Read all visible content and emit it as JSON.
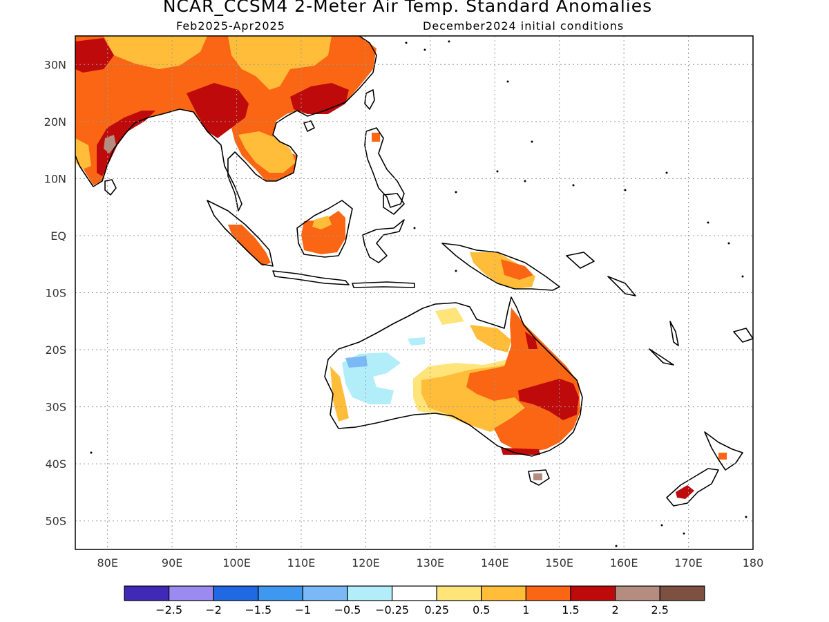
{
  "header": {
    "title": "NCAR_CCSM4 2-Meter Air Temp. Standard Anomalies",
    "period": "Feb2025-Apr2025",
    "init": "December2024 initial conditions"
  },
  "map": {
    "lon_range": [
      75,
      180
    ],
    "lat_range": [
      -55,
      35
    ],
    "lat_labels": [
      "30N",
      "20N",
      "10N",
      "EQ",
      "10S",
      "20S",
      "30S",
      "40S",
      "50S"
    ],
    "lon_labels": [
      "80E",
      "90E",
      "100E",
      "110E",
      "120E",
      "130E",
      "140E",
      "150E",
      "160E",
      "170E",
      "180"
    ],
    "grid_style": "dotted",
    "land_outline_color": "#000000",
    "colorbar": {
      "colors": [
        "#3f29b6",
        "#9b8bf0",
        "#2169e3",
        "#3f98f0",
        "#7ab9f5",
        "#b2eefa",
        "#ffffff",
        "#ffe47a",
        "#ffbd3a",
        "#fa6614",
        "#be0a0a",
        "#b58d80",
        "#7e5041"
      ],
      "labels": [
        "-2.5",
        "-2",
        "-1.5",
        "-1",
        "-0.5",
        "-0.25",
        "0.25",
        "0.5",
        "1",
        "1.5",
        "2",
        "2.5"
      ]
    }
  }
}
